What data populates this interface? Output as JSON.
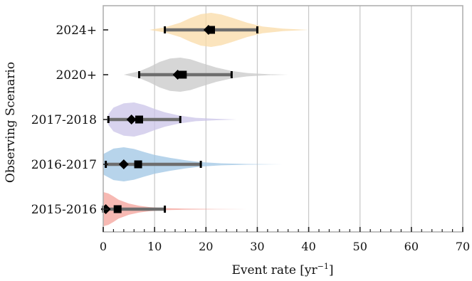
{
  "chart_data": {
    "type": "violin",
    "title": "",
    "xlabel": "Event rate [yr$^{-1}$]",
    "xlabel_text": "Event rate [yr",
    "xlabel_sup": "−1",
    "xlabel_suffix": "]",
    "ylabel": "Observing Scenario",
    "xlim": [
      0,
      70
    ],
    "xticks": [
      "0",
      "10",
      "20",
      "30",
      "40",
      "50",
      "60",
      "70"
    ],
    "grid": "vertical",
    "legend": "none",
    "categories": [
      "2015-2016",
      "2016-2017",
      "2017-2018",
      "2020+",
      "2024+"
    ],
    "series": [
      {
        "category": "2015-2016",
        "color": "#f4a29a",
        "median": 0.5,
        "mean": 2.8,
        "interval": [
          0.0,
          12.0
        ],
        "density": [
          [
            0,
            1.0
          ],
          [
            1,
            0.92
          ],
          [
            2,
            0.75
          ],
          [
            3,
            0.55
          ],
          [
            5,
            0.33
          ],
          [
            7,
            0.2
          ],
          [
            9,
            0.12
          ],
          [
            12,
            0.06
          ],
          [
            16,
            0.03
          ],
          [
            22,
            0.01
          ],
          [
            28,
            0.0
          ]
        ]
      },
      {
        "category": "2016-2017",
        "color": "#9fc6e4",
        "median": 4.0,
        "mean": 6.8,
        "interval": [
          0.5,
          19.0
        ],
        "density": [
          [
            0,
            0.6
          ],
          [
            2,
            0.92
          ],
          [
            4,
            1.0
          ],
          [
            6,
            0.9
          ],
          [
            8,
            0.72
          ],
          [
            10,
            0.55
          ],
          [
            13,
            0.38
          ],
          [
            16,
            0.24
          ],
          [
            19,
            0.13
          ],
          [
            23,
            0.06
          ],
          [
            28,
            0.02
          ],
          [
            35,
            0.0
          ]
        ]
      },
      {
        "category": "2017-2018",
        "color": "#cbc4e8",
        "median": 5.5,
        "mean": 7.0,
        "interval": [
          1.0,
          15.0
        ],
        "density": [
          [
            1,
            0.3
          ],
          [
            2,
            0.7
          ],
          [
            4,
            0.95
          ],
          [
            6,
            1.0
          ],
          [
            8,
            0.85
          ],
          [
            10,
            0.62
          ],
          [
            12,
            0.42
          ],
          [
            15,
            0.22
          ],
          [
            18,
            0.1
          ],
          [
            22,
            0.04
          ],
          [
            26,
            0.0
          ]
        ]
      },
      {
        "category": "2020+",
        "color": "#c8c8c8",
        "median": 14.5,
        "mean": 15.5,
        "interval": [
          7.0,
          25.0
        ],
        "density": [
          [
            4,
            0.0
          ],
          [
            7,
            0.2
          ],
          [
            9,
            0.45
          ],
          [
            11,
            0.75
          ],
          [
            13,
            0.95
          ],
          [
            15,
            1.0
          ],
          [
            17,
            0.9
          ],
          [
            19,
            0.7
          ],
          [
            22,
            0.42
          ],
          [
            25,
            0.22
          ],
          [
            28,
            0.1
          ],
          [
            32,
            0.03
          ],
          [
            36,
            0.0
          ]
        ]
      },
      {
        "category": "2024+",
        "color": "#f9dba7",
        "median": 20.5,
        "mean": 21.0,
        "interval": [
          12.0,
          30.0
        ],
        "density": [
          [
            9,
            0.0
          ],
          [
            12,
            0.15
          ],
          [
            15,
            0.42
          ],
          [
            17,
            0.7
          ],
          [
            19,
            0.92
          ],
          [
            21,
            1.0
          ],
          [
            23,
            0.9
          ],
          [
            25,
            0.72
          ],
          [
            28,
            0.42
          ],
          [
            31,
            0.2
          ],
          [
            35,
            0.07
          ],
          [
            40,
            0.0
          ]
        ]
      }
    ]
  }
}
